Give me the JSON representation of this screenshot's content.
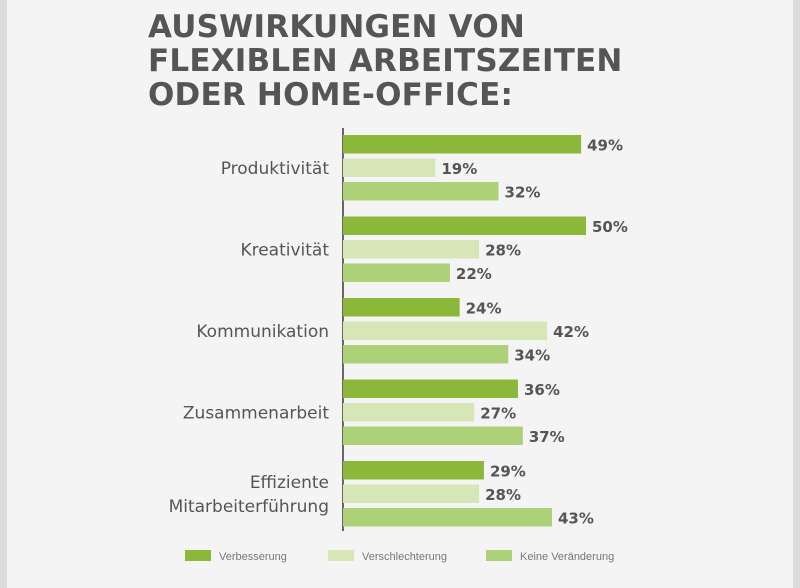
{
  "title_lines": [
    "AUSWIRKUNGEN VON",
    "FLEXIBLEN ARBEITSZEITEN",
    "ODER HOME-OFFICE:"
  ],
  "colors": {
    "verbesserung": "#8bb73a",
    "verschlechterung": "#d6e6b6",
    "keine_veraenderung": "#acd178",
    "text": "#555555",
    "axis": "#444444"
  },
  "chart_data": {
    "type": "bar",
    "orientation": "horizontal",
    "title": "AUSWIRKUNGEN VON FLEXIBLEN ARBEITSZEITEN ODER HOME-OFFICE:",
    "categories": [
      [
        "Produktivität"
      ],
      [
        "Kreativität"
      ],
      [
        "Kommunikation"
      ],
      [
        "Zusammenarbeit"
      ],
      [
        "Effiziente",
        "Mitarbeiterführung"
      ]
    ],
    "series": [
      {
        "name": "Verbesserung",
        "values": [
          49,
          50,
          24,
          36,
          29
        ]
      },
      {
        "name": "Verschlechterung",
        "values": [
          19,
          28,
          42,
          27,
          28
        ]
      },
      {
        "name": "Keine Veränderung",
        "values": [
          32,
          22,
          34,
          37,
          43
        ]
      }
    ],
    "value_suffix": "%",
    "xlim": [
      0,
      50
    ],
    "grid": false,
    "legend_position": "bottom"
  }
}
